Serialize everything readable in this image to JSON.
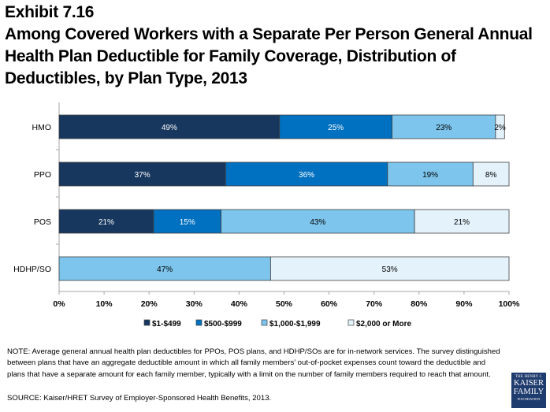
{
  "header": {
    "exhibit": "Exhibit 7.16",
    "title_lines": [
      "Among Covered Workers with a Separate Per Person General Annual",
      "Health Plan Deductible for Family Coverage, Distribution of",
      "Deductibles, by Plan Type, 2013"
    ]
  },
  "chart_data": {
    "type": "bar",
    "orientation": "horizontal",
    "stacked": true,
    "title": "Among Covered Workers with a Separate Per Person General Annual Health Plan Deductible for Family Coverage, Distribution of Deductibles, by Plan Type, 2013",
    "categories": [
      "HMO",
      "PPO",
      "POS",
      "HDHP/SO"
    ],
    "series": [
      {
        "name": "$1-$499",
        "color": "#17375e",
        "label_color": "#ffffff",
        "values": [
          49,
          37,
          21,
          0
        ]
      },
      {
        "name": "$500-$999",
        "color": "#0070c0",
        "label_color": "#ffffff",
        "values": [
          25,
          36,
          15,
          0
        ]
      },
      {
        "name": "$1,000-$1,999",
        "color": "#7dc5ec",
        "label_color": "#000000",
        "values": [
          23,
          19,
          43,
          47
        ]
      },
      {
        "name": "$2,000 or More",
        "color": "#e3f2fb",
        "label_color": "#000000",
        "values": [
          2,
          8,
          21,
          53
        ]
      }
    ],
    "xlabel": "",
    "ylabel": "",
    "xlim": [
      0,
      100
    ],
    "xticks": [
      "0%",
      "10%",
      "20%",
      "30%",
      "40%",
      "50%",
      "60%",
      "70%",
      "80%",
      "90%",
      "100%"
    ],
    "grid": false,
    "legend_position": "bottom"
  },
  "footer": {
    "note": "NOTE: Average general annual health plan deductibles for PPOs, POS plans, and HDHP/SOs are for in-network services. The survey distinguished between plans that have an aggregate deductible amount in which all family members’ out-of-pocket expenses count toward the deductible and plans that have a separate amount for each family member, typically with a limit on the number of family members required to reach that amount.",
    "source": "SOURCE:  Kaiser/HRET Survey of Employer-Sponsored Health Benefits, 2013.",
    "logo_lines": [
      "THE HENRY J.",
      "KAISER",
      "FAMILY",
      "FOUNDATION"
    ]
  }
}
